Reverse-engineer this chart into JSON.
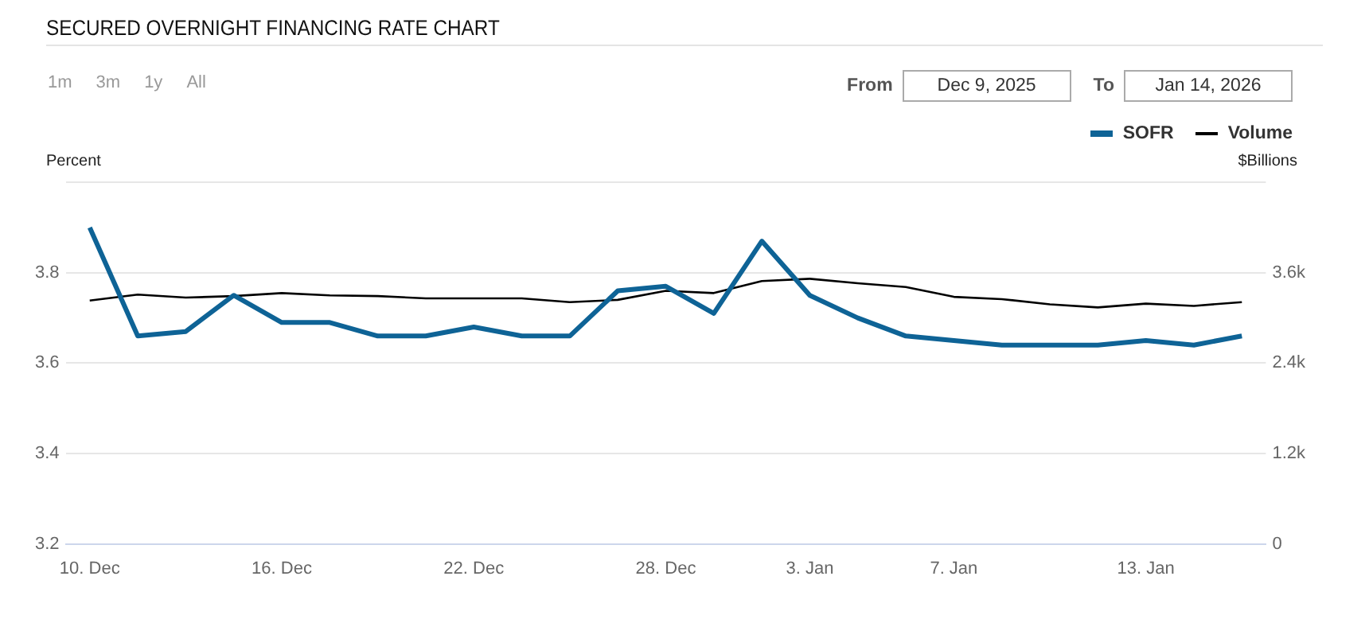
{
  "chart_data": {
    "type": "line",
    "title": "SECURED OVERNIGHT FINANCING RATE CHART",
    "ylabel": "Percent",
    "y2label": "$Billions",
    "annotations": [
      "1m",
      "3m",
      "1y",
      "All",
      "From",
      "Dec 9, 2025",
      "To",
      "Jan 14, 2026"
    ],
    "categories": [
      "10. Dec",
      null,
      null,
      null,
      "16. Dec",
      null,
      null,
      null,
      "22. Dec",
      null,
      null,
      null,
      "28. Dec",
      null,
      null,
      "3. Jan",
      null,
      null,
      "7. Jan",
      null,
      null,
      null,
      "13. Jan",
      null,
      null
    ],
    "series": [
      {
        "name": "SOFR",
        "color": "#0e6396",
        "values": [
          3.9,
          3.66,
          3.67,
          3.75,
          3.69,
          3.69,
          3.66,
          3.66,
          3.68,
          3.66,
          3.66,
          3.76,
          3.77,
          3.71,
          3.87,
          3.75,
          3.7,
          3.66,
          3.65,
          3.64,
          3.64,
          3.64,
          3.65,
          3.64,
          3.66
        ]
      },
      {
        "name": "Volume",
        "color": "#000000",
        "axis": "y2",
        "values": [
          3230,
          3310,
          3270,
          3290,
          3330,
          3300,
          3290,
          3260,
          3260,
          3260,
          3210,
          3240,
          3360,
          3330,
          3490,
          3520,
          3460,
          3410,
          3280,
          3250,
          3180,
          3140,
          3190,
          3160,
          3210
        ]
      }
    ],
    "ylim": [
      3.2,
      4.0
    ],
    "yticks": [
      3.2,
      3.4,
      3.6,
      3.8,
      {
        "value": 4.0,
        "label": null
      }
    ],
    "y2lim": [
      0,
      4800
    ],
    "y2ticks": [
      0,
      {
        "value": 1200,
        "label": "1.2k"
      },
      {
        "value": 2400,
        "label": "2.4k"
      },
      {
        "value": 3600,
        "label": "3.6k"
      },
      {
        "value": 4800,
        "label": null
      }
    ],
    "grid": "y",
    "legend": "top right",
    "marker": "none",
    "line_style": "solid"
  }
}
